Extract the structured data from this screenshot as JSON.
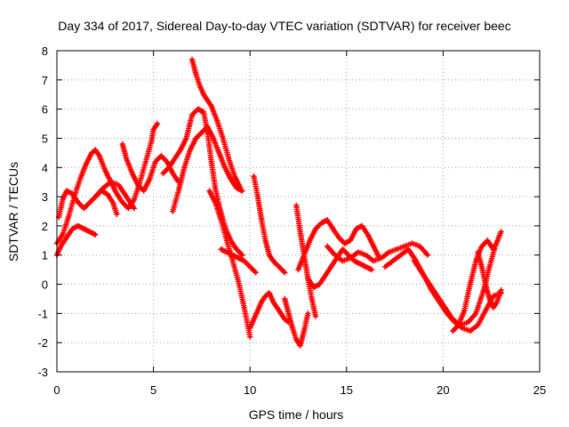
{
  "chart_data": {
    "type": "scatter",
    "title": "Day 334 of 2017, Sidereal Day-to-day VTEC variation (SDTVAR) for receiver beec",
    "xlabel": "GPS time / hours",
    "ylabel": "SDTVAR / TECUs",
    "xlim": [
      0,
      25
    ],
    "ylim": [
      -3,
      8
    ],
    "xticks": [
      0,
      5,
      10,
      15,
      20,
      25
    ],
    "yticks": [
      -3,
      -2,
      -1,
      0,
      1,
      2,
      3,
      4,
      5,
      6,
      7,
      8
    ],
    "grid": true,
    "legend": "none",
    "marker": "+",
    "colors": {
      "series": "#ff0000",
      "grid": "#a0a0a0",
      "axis": "#000000"
    },
    "series": [
      {
        "name": "track-1",
        "x": [
          0.0,
          0.3,
          0.6,
          0.9,
          1.2,
          1.5,
          1.8,
          2.0,
          2.2,
          2.5,
          2.8,
          3.1,
          3.4,
          3.7,
          4.0,
          4.3,
          4.6,
          4.9,
          5.0,
          5.2
        ],
        "y": [
          1.4,
          1.7,
          2.3,
          3.0,
          3.6,
          4.1,
          4.5,
          4.6,
          4.4,
          3.9,
          3.5,
          3.1,
          2.8,
          2.6,
          2.9,
          3.5,
          4.2,
          4.9,
          5.3,
          5.5
        ]
      },
      {
        "name": "track-2",
        "x": [
          0.0,
          0.2,
          0.5,
          0.8,
          1.1,
          1.4,
          1.7,
          2.0
        ],
        "y": [
          1.0,
          1.3,
          1.6,
          1.9,
          2.0,
          1.9,
          1.8,
          1.7
        ]
      },
      {
        "name": "track-3",
        "x": [
          0.1,
          0.3,
          0.5,
          0.8,
          1.1,
          1.4,
          1.7,
          2.0,
          2.3,
          2.6,
          2.9,
          3.1
        ],
        "y": [
          2.3,
          2.9,
          3.2,
          3.1,
          2.8,
          2.6,
          2.8,
          3.0,
          3.2,
          3.1,
          2.8,
          2.4
        ]
      },
      {
        "name": "track-4",
        "x": [
          3.4,
          3.6,
          3.9,
          4.2,
          4.5,
          4.8,
          5.1,
          5.4,
          5.7,
          6.0,
          6.3
        ],
        "y": [
          4.8,
          4.3,
          3.8,
          3.4,
          3.2,
          3.6,
          4.2,
          4.4,
          4.2,
          3.8,
          3.5
        ]
      },
      {
        "name": "track-5",
        "x": [
          2.0,
          2.4,
          2.8,
          3.2,
          3.6,
          4.0
        ],
        "y": [
          3.0,
          3.3,
          3.5,
          3.4,
          3.0,
          2.6
        ]
      },
      {
        "name": "track-6",
        "x": [
          5.5,
          5.8,
          6.1,
          6.4,
          6.7,
          7.0,
          7.3,
          7.6,
          7.8,
          8.0,
          8.2,
          8.4,
          8.6,
          8.8,
          9.0,
          9.3,
          9.6
        ],
        "y": [
          3.8,
          4.0,
          4.3,
          4.6,
          5.0,
          5.8,
          6.0,
          5.9,
          5.2,
          4.2,
          3.3,
          2.7,
          2.2,
          1.8,
          1.5,
          1.2,
          1.0
        ]
      },
      {
        "name": "track-7",
        "x": [
          6.0,
          6.3,
          6.6,
          6.9,
          7.2,
          7.5,
          7.8,
          8.1,
          8.4,
          8.7,
          9.0,
          9.3,
          9.6
        ],
        "y": [
          2.5,
          3.2,
          4.0,
          4.6,
          5.0,
          5.2,
          5.4,
          5.0,
          4.5,
          4.0,
          3.6,
          3.3,
          3.2
        ]
      },
      {
        "name": "track-8",
        "x": [
          7.0,
          7.2,
          7.4,
          7.6,
          7.8,
          8.0,
          8.3,
          8.6,
          8.9,
          9.2,
          9.5
        ],
        "y": [
          7.7,
          7.2,
          6.8,
          6.5,
          6.3,
          6.1,
          5.6,
          5.0,
          4.3,
          3.7,
          3.3
        ]
      },
      {
        "name": "track-9",
        "x": [
          7.9,
          8.2,
          8.5,
          8.8,
          9.1,
          9.4,
          9.7,
          10.0
        ],
        "y": [
          3.2,
          2.8,
          2.2,
          1.5,
          0.8,
          0.1,
          -0.8,
          -1.8
        ]
      },
      {
        "name": "track-10",
        "x": [
          8.5,
          8.8,
          9.1,
          9.4,
          9.7,
          10.0,
          10.3
        ],
        "y": [
          1.2,
          1.1,
          1.0,
          0.9,
          0.8,
          0.6,
          0.4
        ]
      },
      {
        "name": "track-11",
        "x": [
          10.0,
          10.2,
          10.4,
          10.6,
          10.8,
          11.0,
          11.2,
          11.4,
          11.6,
          11.8,
          12.0
        ],
        "y": [
          -1.5,
          -1.2,
          -0.9,
          -0.6,
          -0.4,
          -0.3,
          -0.6,
          -0.8,
          -1.0,
          -1.2,
          -1.3
        ]
      },
      {
        "name": "track-12",
        "x": [
          10.2,
          10.4,
          10.6,
          10.8,
          11.0,
          11.2,
          11.5,
          11.8
        ],
        "y": [
          3.7,
          3.0,
          2.2,
          1.5,
          1.0,
          0.8,
          0.6,
          0.4
        ]
      },
      {
        "name": "track-13",
        "x": [
          11.8,
          12.0,
          12.2,
          12.4,
          12.6,
          12.8,
          13.0
        ],
        "y": [
          -0.5,
          -1.0,
          -1.5,
          -1.9,
          -2.1,
          -1.6,
          -1.0
        ]
      },
      {
        "name": "track-14",
        "x": [
          12.4,
          12.6,
          12.8,
          13.0,
          13.2,
          13.4
        ],
        "y": [
          2.7,
          1.8,
          1.0,
          0.2,
          -0.5,
          -1.1
        ]
      },
      {
        "name": "track-15",
        "x": [
          12.5,
          12.8,
          13.1,
          13.4,
          13.7,
          14.0,
          14.3,
          14.6,
          14.9,
          15.2,
          15.5,
          15.8,
          16.1,
          16.4,
          16.7
        ],
        "y": [
          0.5,
          1.0,
          1.5,
          1.9,
          2.1,
          2.2,
          1.9,
          1.6,
          1.4,
          1.5,
          1.9,
          2.0,
          1.7,
          1.3,
          0.9
        ]
      },
      {
        "name": "track-16",
        "x": [
          13.0,
          13.3,
          13.6,
          13.9,
          14.2,
          14.5,
          14.8,
          15.1,
          15.4,
          15.7,
          16.0,
          16.3
        ],
        "y": [
          0.2,
          -0.1,
          0.0,
          0.3,
          0.6,
          0.9,
          1.2,
          1.0,
          0.8,
          0.7,
          0.6,
          0.5
        ]
      },
      {
        "name": "track-17",
        "x": [
          14.0,
          14.4,
          14.8,
          15.2,
          15.6,
          16.0,
          16.4,
          16.8,
          17.2,
          17.6,
          18.0,
          18.4,
          18.8,
          19.2
        ],
        "y": [
          1.3,
          1.0,
          0.8,
          0.9,
          1.1,
          1.0,
          0.8,
          0.9,
          1.1,
          1.2,
          1.3,
          1.4,
          1.3,
          1.0
        ]
      },
      {
        "name": "track-18",
        "x": [
          17.0,
          17.4,
          17.8,
          18.2,
          18.6,
          19.0,
          19.4,
          19.8,
          20.2,
          20.6,
          21.0,
          21.4,
          21.8,
          22.2,
          22.6,
          23.0
        ],
        "y": [
          0.6,
          0.8,
          1.0,
          1.2,
          0.8,
          0.3,
          -0.2,
          -0.6,
          -1.0,
          -1.3,
          -1.5,
          -1.6,
          -1.4,
          -0.9,
          -0.4,
          -0.3
        ]
      },
      {
        "name": "track-19",
        "x": [
          18.5,
          18.9,
          19.3,
          19.7,
          20.1,
          20.5,
          20.9,
          21.3,
          21.7,
          22.1,
          22.4,
          22.7,
          23.0
        ],
        "y": [
          0.8,
          0.4,
          0.0,
          -0.4,
          -0.8,
          -1.2,
          -1.4,
          -1.3,
          -1.0,
          -0.2,
          0.6,
          1.3,
          1.8
        ]
      },
      {
        "name": "track-20",
        "x": [
          20.5,
          20.8,
          21.1,
          21.4,
          21.7,
          22.0,
          22.3,
          22.6
        ],
        "y": [
          -1.6,
          -1.4,
          -0.9,
          0.0,
          0.8,
          1.3,
          1.5,
          1.2
        ]
      },
      {
        "name": "track-21",
        "x": [
          21.8,
          22.0,
          22.2,
          22.4,
          22.6,
          22.8,
          23.0
        ],
        "y": [
          1.1,
          0.6,
          0.0,
          -0.5,
          -0.8,
          -0.6,
          -0.2
        ]
      }
    ]
  }
}
